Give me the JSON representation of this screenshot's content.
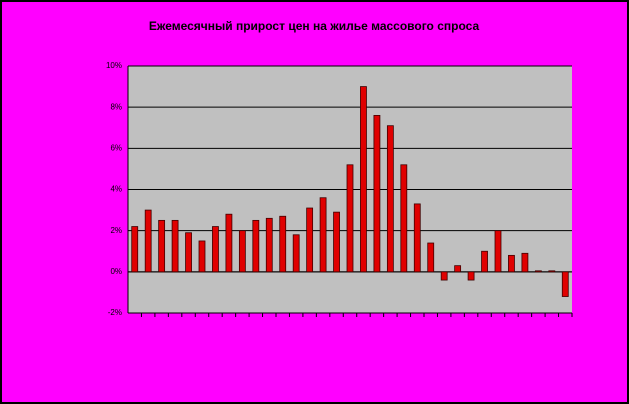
{
  "chart_data": {
    "type": "bar",
    "title": "Ежемесячный прирост цен на жилье массового спроса",
    "categories": [
      null,
      null,
      null,
      null,
      null,
      null,
      null,
      null,
      null,
      null,
      null,
      null,
      null,
      null,
      null,
      null,
      null,
      null,
      null,
      null,
      null,
      null,
      null,
      null,
      null,
      null,
      null,
      null,
      null,
      null,
      null,
      null,
      null
    ],
    "values": [
      2.2,
      3.0,
      2.5,
      2.5,
      1.9,
      1.5,
      2.2,
      2.8,
      2.0,
      2.5,
      2.6,
      2.7,
      1.8,
      3.1,
      3.6,
      2.9,
      5.2,
      9.0,
      7.6,
      7.1,
      5.2,
      3.3,
      1.4,
      -0.4,
      0.3,
      -0.4,
      1.0,
      2.0,
      0.8,
      0.9,
      0.05,
      0.05,
      -1.2
    ],
    "color": "#e00000",
    "ylim": [
      -2,
      10
    ],
    "yticks": [
      {
        "value": -2,
        "label": "-2%"
      },
      {
        "value": 0,
        "label": "0%"
      },
      {
        "value": 2,
        "label": "2%"
      },
      {
        "value": 4,
        "label": "4%"
      },
      {
        "value": 6,
        "label": "6%"
      },
      {
        "value": 8,
        "label": "8%"
      },
      {
        "value": 10,
        "label": "10%"
      }
    ],
    "grid": true
  }
}
